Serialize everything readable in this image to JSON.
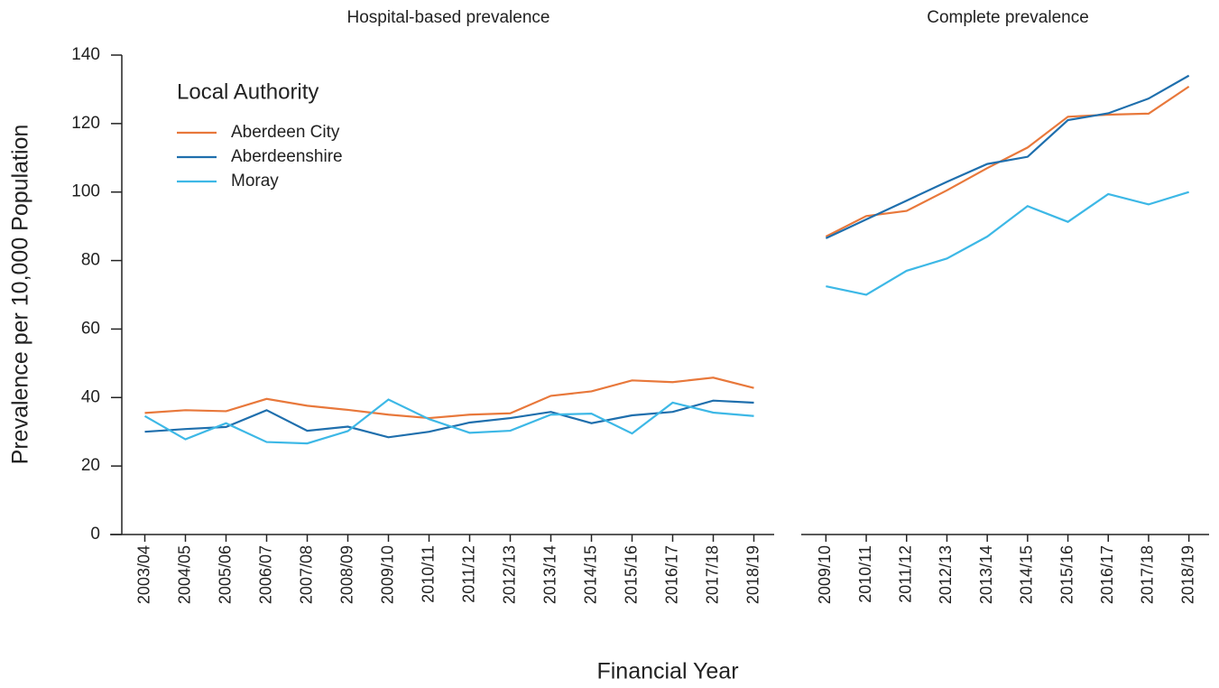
{
  "chart_data": [
    {
      "type": "line",
      "title": "Hospital-based prevalence",
      "ylabel": "Prevalence per 10,000 Population",
      "xlabel": "Financial Year",
      "legend_title": "Local Authority",
      "legend": "upper left",
      "categories": [
        "2003/04",
        "2004/05",
        "2005/06",
        "2006/07",
        "2007/08",
        "2008/09",
        "2009/10",
        "2010/11",
        "2011/12",
        "2012/13",
        "2013/14",
        "2014/15",
        "2015/16",
        "2016/17",
        "2017/18",
        "2018/19"
      ],
      "series": [
        {
          "name": "Aberdeen City",
          "color": "#e8783b",
          "values": [
            35.5,
            36.3,
            36,
            39.6,
            37.6,
            36.4,
            35,
            34,
            35,
            35.4,
            40.5,
            41.8,
            45,
            44.5,
            45.8,
            42.8
          ]
        },
        {
          "name": "Aberdeenshire",
          "color": "#1f6fad",
          "values": [
            30,
            30.8,
            31.4,
            36.3,
            30.3,
            31.5,
            28.4,
            30,
            32.7,
            34,
            35.8,
            32.5,
            34.8,
            35.8,
            39.1,
            38.5
          ]
        },
        {
          "name": "Moray",
          "color": "#3db8e6",
          "values": [
            34.6,
            27.8,
            32.5,
            27,
            26.6,
            30.2,
            39.4,
            33.7,
            29.7,
            30.3,
            35,
            35.3,
            29.5,
            38.5,
            35.6,
            34.6
          ]
        }
      ],
      "ylim": [
        0,
        140
      ],
      "yticks": [
        0,
        20,
        40,
        60,
        80,
        100,
        120,
        140
      ]
    },
    {
      "type": "line",
      "title": "Complete prevalence",
      "categories": [
        "2009/10",
        "2010/11",
        "2011/12",
        "2012/13",
        "2013/14",
        "2014/15",
        "2015/16",
        "2016/17",
        "2017/18",
        "2018/19"
      ],
      "series": [
        {
          "color": "#e8783b",
          "values": [
            87,
            93,
            94.5,
            100.5,
            107,
            113,
            122,
            122.6,
            122.9,
            130.8
          ]
        },
        {
          "color": "#1f6fad",
          "values": [
            86.5,
            92,
            97.5,
            103,
            108.2,
            110.3,
            121,
            123,
            127.3,
            134
          ]
        },
        {
          "color": "#3db8e6",
          "values": [
            72.5,
            70,
            77,
            80.6,
            87,
            95.9,
            91.3,
            99.4,
            96.4,
            100
          ]
        }
      ],
      "ylim": [
        0,
        140
      ]
    }
  ]
}
